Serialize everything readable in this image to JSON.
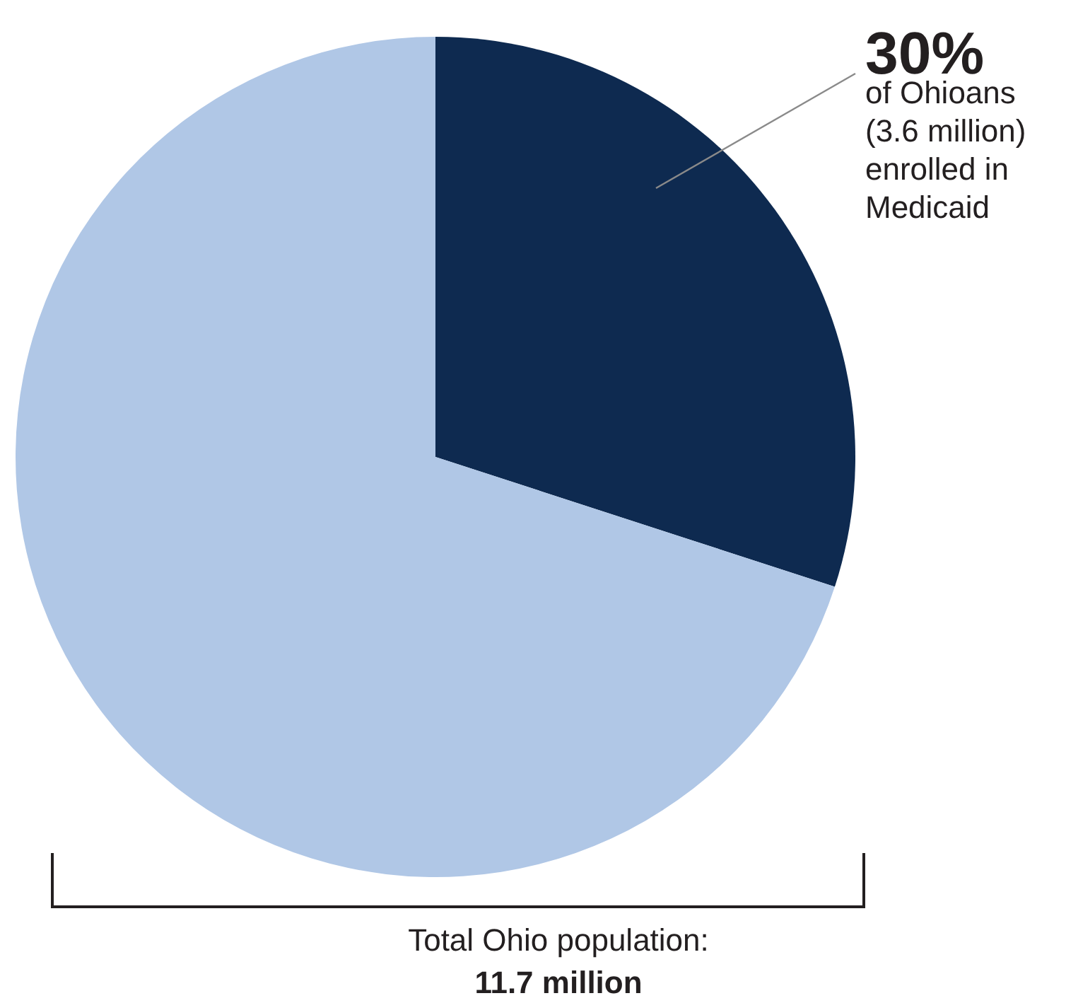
{
  "chart_data": {
    "type": "pie",
    "categories": [
      null,
      null
    ],
    "values": [
      30,
      70
    ],
    "colors": [
      "#0e2a50",
      "#b0c7e6"
    ],
    "value_labels": [
      "30%",
      null
    ],
    "annotations": [
      "of Ohioans (3.6 million) enrolled in Medicaid",
      "Total Ohio population:",
      "11.7 million"
    ]
  }
}
